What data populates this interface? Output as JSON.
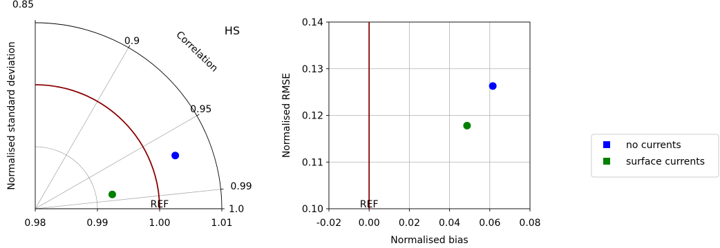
{
  "chart_data": [
    {
      "type": "taylor",
      "title": "HS",
      "ylabel": "Normalised standard deviation",
      "correlation_label": "Correlation",
      "std_range": [
        0.98,
        1.01
      ],
      "std_ticks": [
        "0.98",
        "0.99",
        "1.00",
        "1.01"
      ],
      "correlation_ticks": [
        {
          "value": 0.85,
          "label": "0.85"
        },
        {
          "value": 0.9,
          "label": "0.9"
        },
        {
          "value": 0.95,
          "label": "0.95"
        },
        {
          "value": 0.99,
          "label": "0.99"
        },
        {
          "value": 1.0,
          "label": "1.0"
        }
      ],
      "reference": {
        "label": "REF",
        "std": 1.0,
        "color": "#8b0000"
      },
      "series": [
        {
          "name": "no currents",
          "std": 1.0041,
          "correlation": 0.9652,
          "color": "#0000ff"
        },
        {
          "name": "surface currents",
          "std": 0.9926,
          "correlation": 0.9824,
          "color": "#008000"
        }
      ]
    },
    {
      "type": "scatter",
      "xlabel": "Normalised bias",
      "ylabel": "Normalised RMSE",
      "xlim": [
        -0.02,
        0.08
      ],
      "ylim": [
        0.1,
        0.14
      ],
      "x_ticks": [
        "-0.02",
        "0.00",
        "0.02",
        "0.04",
        "0.06",
        "0.08"
      ],
      "y_ticks": [
        "0.10",
        "0.11",
        "0.12",
        "0.13",
        "0.14"
      ],
      "grid": true,
      "reference": {
        "label": "REF",
        "x": 0.0,
        "color": "#8b0000"
      },
      "series": [
        {
          "name": "no currents",
          "x": 0.0615,
          "y": 0.1263,
          "color": "#0000ff"
        },
        {
          "name": "surface currents",
          "x": 0.0487,
          "y": 0.1178,
          "color": "#008000"
        }
      ]
    }
  ],
  "legend": {
    "placement": "right",
    "items": [
      {
        "label": "no currents",
        "color": "#0000ff"
      },
      {
        "label": "surface currents",
        "color": "#008000"
      }
    ]
  }
}
